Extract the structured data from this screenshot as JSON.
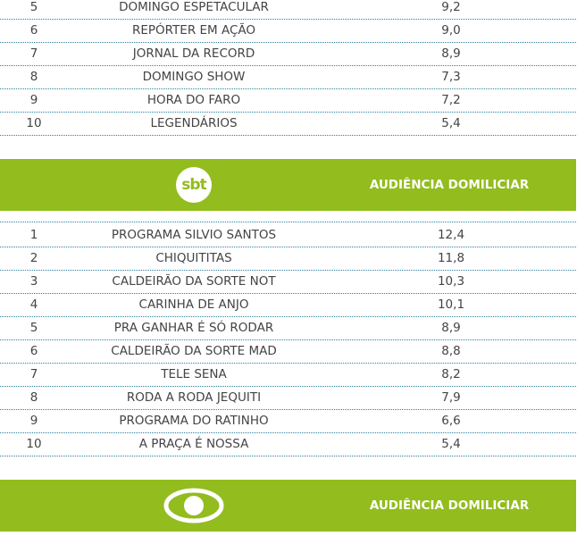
{
  "sections": [
    {
      "rows": [
        [
          "5",
          "DOMINGO ESPETACULAR",
          "9,2"
        ],
        [
          "6",
          "REPÓRTER EM AÇÃO",
          "9,0"
        ],
        [
          "7",
          "JORNAL DA RECORD",
          "8,9"
        ],
        [
          "8",
          "DOMINGO SHOW",
          "7,3"
        ],
        [
          "9",
          "HORA DO FARO",
          "7,2"
        ],
        [
          "10",
          "LEGENDÁRIOS",
          "5,4"
        ]
      ]
    },
    {
      "logo": "sbt",
      "header": "AUDIÊNCIA DOMILICIAR",
      "rows": [
        [
          "1",
          "PROGRAMA SILVIO SANTOS",
          "12,4"
        ],
        [
          "2",
          "CHIQUITITAS",
          "11,8"
        ],
        [
          "3",
          "CALDEIRÃO DA SORTE NOT",
          "10,3"
        ],
        [
          "4",
          "CARINHA DE ANJO",
          "10,1"
        ],
        [
          "5",
          "PRA GANHAR É SÓ RODAR",
          "8,9"
        ],
        [
          "6",
          "CALDEIRÃO DA SORTE MAD",
          "8,8"
        ],
        [
          "7",
          "TELE SENA",
          "8,2"
        ],
        [
          "8",
          "RODA A RODA JEQUITI",
          "7,9"
        ],
        [
          "9",
          "PROGRAMA DO RATINHO",
          "6,6"
        ],
        [
          "10",
          "A PRAÇA É NOSSA",
          "5,4"
        ]
      ]
    },
    {
      "header": "AUDIÊNCIA DOMILICIAR",
      "rows": []
    }
  ]
}
